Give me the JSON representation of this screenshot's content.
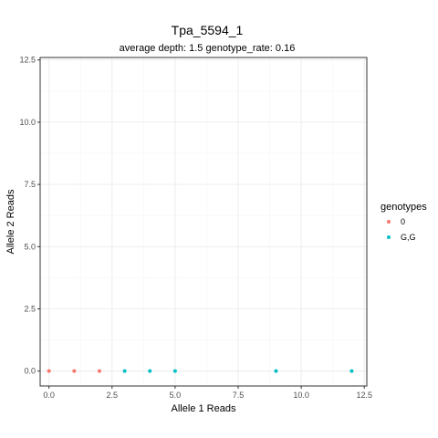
{
  "chart_data": {
    "type": "scatter",
    "title": "Tpa_5594_1",
    "subtitle": "average depth:  1.5  genotype_rate:  0.16",
    "xlabel": "Allele 1 Reads",
    "ylabel": "Allele 2 Reads",
    "xlim": [
      -0.35,
      12.6
    ],
    "ylim": [
      -0.6,
      12.6
    ],
    "x_ticks": [
      0,
      2.5,
      5,
      7.5,
      10,
      12.5
    ],
    "x_tick_labels": [
      "0.0",
      "2.5",
      "5.0",
      "7.5",
      "10.0",
      "12.5"
    ],
    "y_ticks": [
      0,
      2.5,
      5,
      7.5,
      10,
      12.5
    ],
    "y_tick_labels": [
      "0.0",
      "2.5",
      "5.0",
      "7.5",
      "10.0",
      "12.5"
    ],
    "grid": true,
    "legend": {
      "title": "genotypes",
      "position": "right"
    },
    "series": [
      {
        "name": "0",
        "color": "#F8766D",
        "points": [
          [
            0,
            0
          ],
          [
            1,
            0
          ],
          [
            2,
            0
          ]
        ]
      },
      {
        "name": "G,G",
        "color": "#00BFC4",
        "points": [
          [
            3,
            0
          ],
          [
            4,
            0
          ],
          [
            5,
            0
          ],
          [
            9,
            0
          ],
          [
            12,
            0
          ]
        ]
      }
    ]
  }
}
